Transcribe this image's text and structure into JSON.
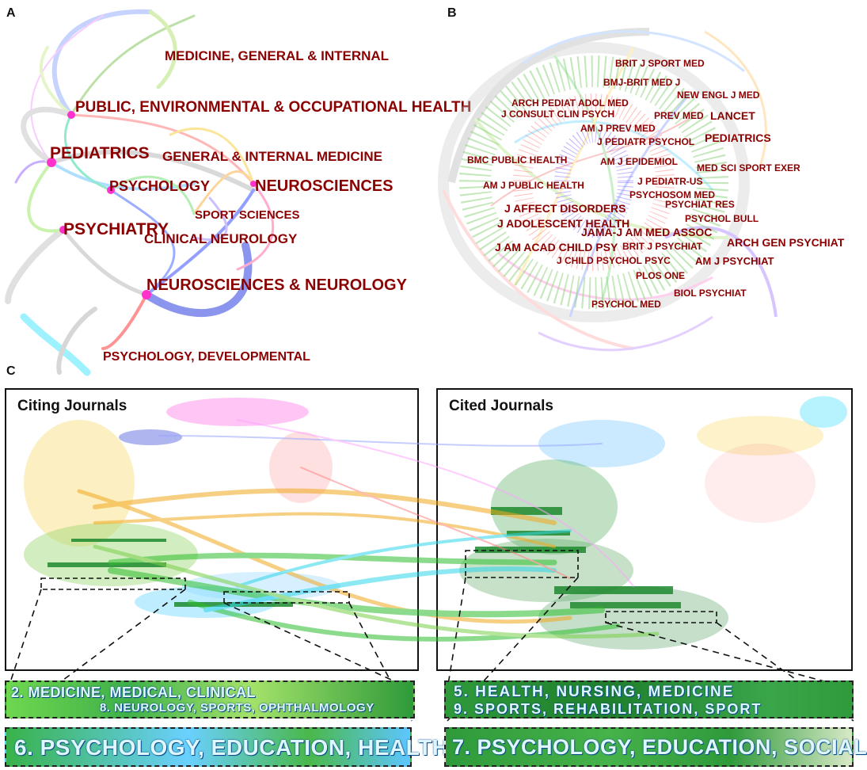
{
  "panels": {
    "a": {
      "letter": "A",
      "labels": {
        "med_general": "MEDICINE, GENERAL & INTERNAL",
        "public_env": "PUBLIC, ENVIRONMENTAL & OCCUPATIONAL HEALTH",
        "pediatrics": "PEDIATRICS",
        "gen_internal": "GENERAL & INTERNAL MEDICINE",
        "psychology": "PSYCHOLOGY",
        "neurosciences": "NEUROSCIENCES",
        "sport_sciences": "SPORT SCIENCES",
        "psychiatry": "PSYCHIATRY",
        "clinical_neurology": "CLINICAL NEUROLOGY",
        "neuro_neurology": "NEUROSCIENCES & NEUROLOGY",
        "psych_dev": "PSYCHOLOGY, DEVELOPMENTAL"
      }
    },
    "b": {
      "letter": "B",
      "labels": {
        "brit_j_sport_med": "BRIT J SPORT MED",
        "bmj": "BMJ-BRIT MED J",
        "arch_pediat": "ARCH PEDIAT ADOL MED",
        "new_engl": "NEW ENGL J MED",
        "j_consult": "J CONSULT CLIN PSYCH",
        "prev_med": "PREV MED",
        "lancet": "LANCET",
        "am_j_prev": "AM J PREV MED",
        "j_pediatr_psychol": "J PEDIATR PSYCHOL",
        "pediatrics": "PEDIATRICS",
        "bmc": "BMC PUBLIC HEALTH",
        "am_j_epi": "AM J EPIDEMIOL",
        "med_sci": "MED SCI SPORT EXER",
        "am_j_public": "AM J PUBLIC HEALTH",
        "j_pediatr_us": "J PEDIATR-US",
        "psychosom": "PSYCHOSOM MED",
        "j_affect": "J AFFECT DISORDERS",
        "psychiat_res": "PSYCHIAT RES",
        "psychol_bull": "PSYCHOL BULL",
        "j_adolescent": "J ADOLESCENT HEALTH",
        "jama": "JAMA-J AM MED ASSOC",
        "brit_j_psychiat": "BRIT J PSYCHIAT",
        "arch_gen": "ARCH GEN PSYCHIAT",
        "j_am_acad": "J AM ACAD CHILD PSY",
        "j_child": "J CHILD PSYCHOL PSYC",
        "am_j_psychiat": "AM J PSYCHIAT",
        "plos": "PLOS ONE",
        "biol_psychiat": "BIOL PSYCHIAT",
        "psychol_med": "PSYCHOL MED"
      }
    },
    "c": {
      "letter": "C",
      "citing_title": "Citing Journals",
      "cited_title": "Cited Journals",
      "zoom": {
        "left_1a": "2. MEDICINE, MEDICAL, CLINICAL",
        "left_1b": "8. NEUROLOGY, SPORTS, OPHTHALMOLOGY",
        "left_2": "6. PSYCHOLOGY, EDUCATION, HEALTH",
        "right_1a": "5. HEALTH, NURSING, MEDICINE",
        "right_1b": "9. SPORTS, REHABILITATION, SPORT",
        "right_2": "7. PSYCHOLOGY, EDUCATION, SOCIAL"
      }
    }
  },
  "colors": {
    "label": "#8b0000",
    "link_green": "#2fbf2f",
    "link_orange": "#f2a81f",
    "link_cyan": "#2fd6e8",
    "cluster_green": "#1e8a2e"
  }
}
